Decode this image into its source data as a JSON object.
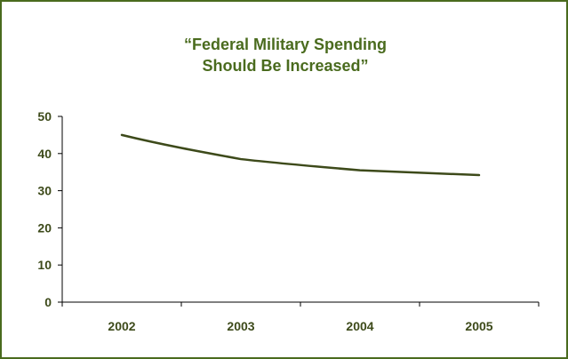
{
  "colors": {
    "accent": "#4a6b1e",
    "line": "#3d4a1a",
    "axis": "#000000",
    "background": "#ffffff"
  },
  "chart_data": {
    "type": "line",
    "title_lines": [
      "“Federal Military Spending",
      "Should Be Increased”"
    ],
    "categories": [
      "2002",
      "2003",
      "2004",
      "2005"
    ],
    "series": [
      {
        "values": [
          45,
          38.5,
          35.5,
          34.2
        ]
      }
    ],
    "y_ticks": [
      "0",
      "10",
      "20",
      "30",
      "40",
      "50"
    ],
    "ylim": [
      0,
      50
    ],
    "xlabel": "",
    "ylabel": "",
    "grid": false,
    "legend": "none"
  }
}
